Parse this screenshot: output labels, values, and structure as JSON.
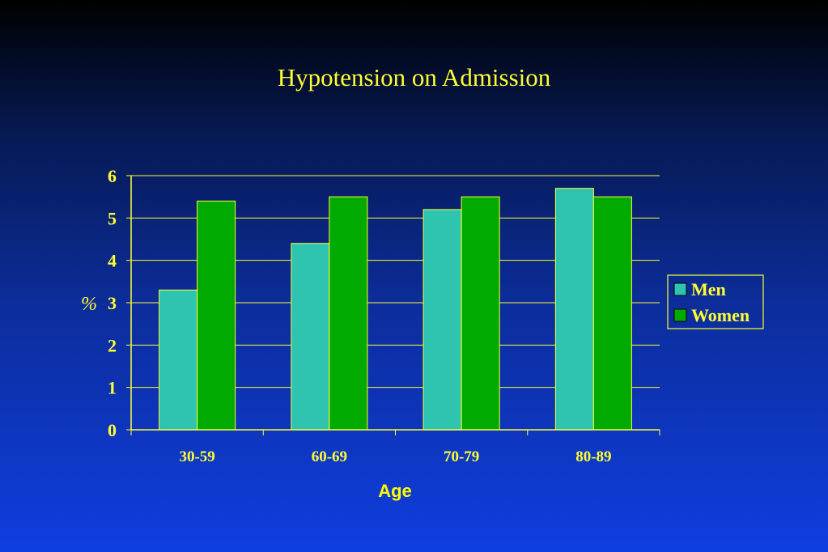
{
  "slide": {
    "title": "Hypotension on Admission"
  },
  "chart_data": {
    "type": "bar",
    "title": "Hypotension on Admission",
    "xlabel": "Age",
    "ylabel": "%",
    "categories": [
      "30-59",
      "60-69",
      "70-79",
      "80-89"
    ],
    "series": [
      {
        "name": "Men",
        "values": [
          3.3,
          4.4,
          5.2,
          5.7
        ],
        "color": "#2ec4b0"
      },
      {
        "name": "Women",
        "values": [
          5.4,
          5.5,
          5.5,
          5.5
        ],
        "color": "#00aa00"
      }
    ],
    "ylim": [
      0,
      6
    ],
    "yticks": [
      0,
      1,
      2,
      3,
      4,
      5,
      6
    ],
    "grid": true,
    "legend": "right",
    "colors": {
      "text": "#ffff33",
      "axis": "#ffff33",
      "xlabel": "#ffff00"
    }
  }
}
